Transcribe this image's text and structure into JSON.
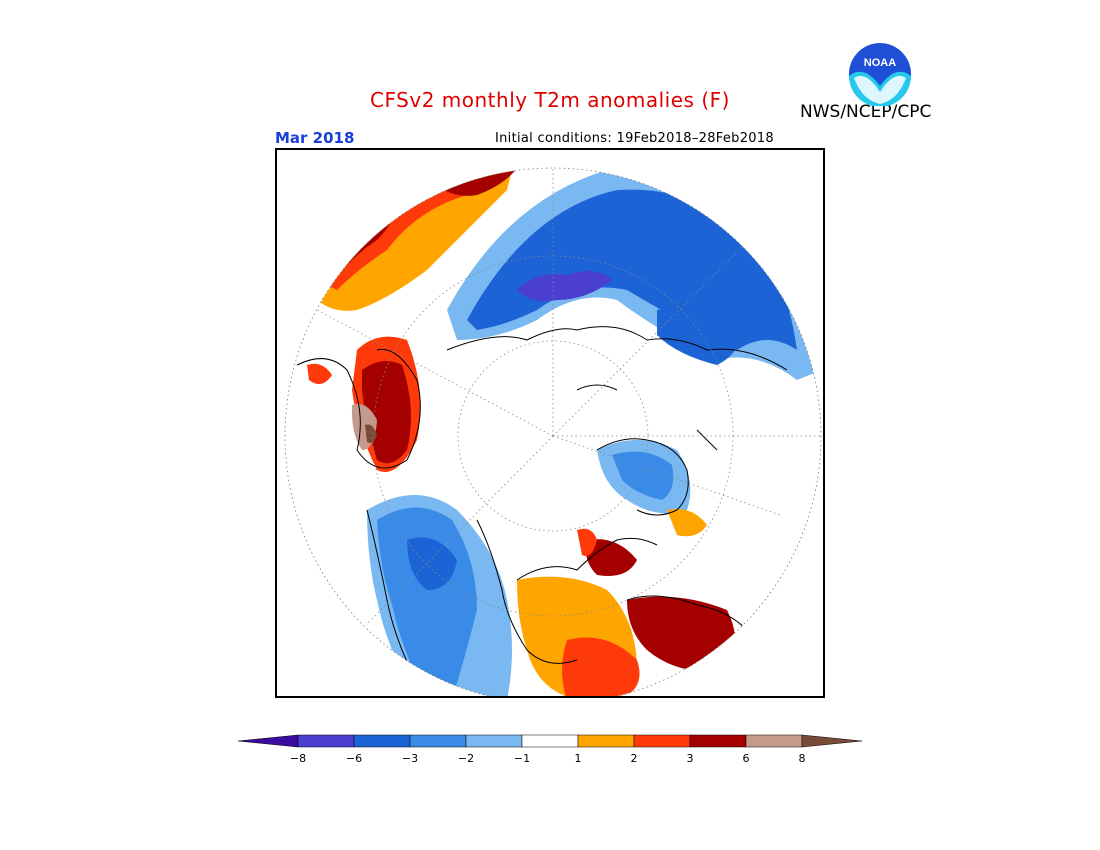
{
  "header": {
    "title": "CFSv2 monthly T2m anomalies (F)",
    "agency": "NWS/NCEP/CPC",
    "logo_text": "NOAA",
    "valid_month": "Mar 2018",
    "initial_conditions": "Initial conditions: 19Feb2018–28Feb2018"
  },
  "legend": {
    "labels": [
      "−8",
      "−6",
      "−3",
      "−2",
      "−1",
      "1",
      "2",
      "3",
      "6",
      "8"
    ],
    "bins": [
      {
        "color": "#3b0d9e"
      },
      {
        "color": "#4a3fcf"
      },
      {
        "color": "#1c64d6"
      },
      {
        "color": "#3a8be8"
      },
      {
        "color": "#7ab8f2"
      },
      {
        "color": "#ffffff"
      },
      {
        "color": "#ffa500"
      },
      {
        "color": "#ff3a0a"
      },
      {
        "color": "#a50000"
      },
      {
        "color": "#c39a8c"
      },
      {
        "color": "#7a4a38"
      }
    ]
  },
  "colors": {
    "title": "#e00000",
    "month": "#1a3fd8"
  }
}
